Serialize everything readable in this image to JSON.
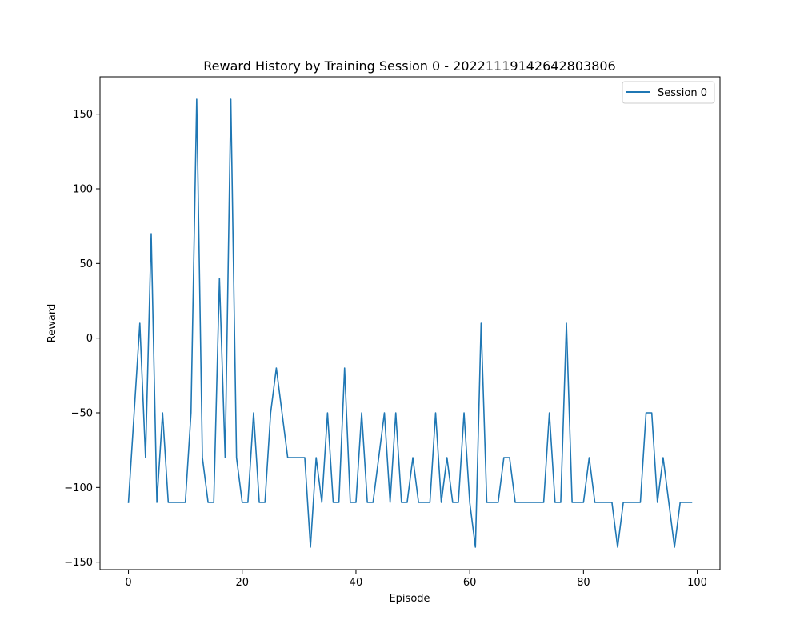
{
  "chart_data": {
    "type": "line",
    "title": "Reward History by Training Session 0 - 20221119142642803806",
    "xlabel": "Episode",
    "ylabel": "Reward",
    "xlim": [
      -5,
      104
    ],
    "ylim": [
      -155,
      175
    ],
    "xticks": [
      0,
      20,
      40,
      60,
      80,
      100
    ],
    "yticks": [
      -150,
      -100,
      -50,
      0,
      50,
      100,
      150
    ],
    "grid": false,
    "legend_position": "top-right",
    "series": [
      {
        "name": "Session 0",
        "color": "#1f77b4",
        "x": [
          0,
          1,
          2,
          3,
          4,
          5,
          6,
          7,
          8,
          9,
          10,
          11,
          12,
          13,
          14,
          15,
          16,
          17,
          18,
          19,
          20,
          21,
          22,
          23,
          24,
          25,
          26,
          27,
          28,
          29,
          30,
          31,
          32,
          33,
          34,
          35,
          36,
          37,
          38,
          39,
          40,
          41,
          42,
          43,
          44,
          45,
          46,
          47,
          48,
          49,
          50,
          51,
          52,
          53,
          54,
          55,
          56,
          57,
          58,
          59,
          60,
          61,
          62,
          63,
          64,
          65,
          66,
          67,
          68,
          69,
          70,
          71,
          72,
          73,
          74,
          75,
          76,
          77,
          78,
          79,
          80,
          81,
          82,
          83,
          84,
          85,
          86,
          87,
          88,
          89,
          90,
          91,
          92,
          93,
          94,
          95,
          96,
          97,
          98,
          99
        ],
        "values": [
          -110,
          -50,
          10,
          -80,
          70,
          -110,
          -50,
          -110,
          -110,
          -110,
          -110,
          -50,
          160,
          -80,
          -110,
          -110,
          40,
          -80,
          160,
          -80,
          -110,
          -110,
          -50,
          -110,
          -110,
          -50,
          -20,
          -50,
          -80,
          -80,
          -80,
          -80,
          -140,
          -80,
          -110,
          -50,
          -110,
          -110,
          -20,
          -110,
          -110,
          -50,
          -110,
          -110,
          -80,
          -50,
          -110,
          -50,
          -110,
          -110,
          -80,
          -110,
          -110,
          -110,
          -50,
          -110,
          -80,
          -110,
          -110,
          -50,
          -110,
          -140,
          10,
          -110,
          -110,
          -110,
          -80,
          -80,
          -110,
          -110,
          -110,
          -110,
          -110,
          -110,
          -50,
          -110,
          -110,
          10,
          -110,
          -110,
          -110,
          -80,
          -110,
          -110,
          -110,
          -110,
          -140,
          -110,
          -110,
          -110,
          -110,
          -50,
          -50,
          -110,
          -80,
          -110,
          -140,
          -110,
          -110,
          -110
        ]
      }
    ]
  }
}
